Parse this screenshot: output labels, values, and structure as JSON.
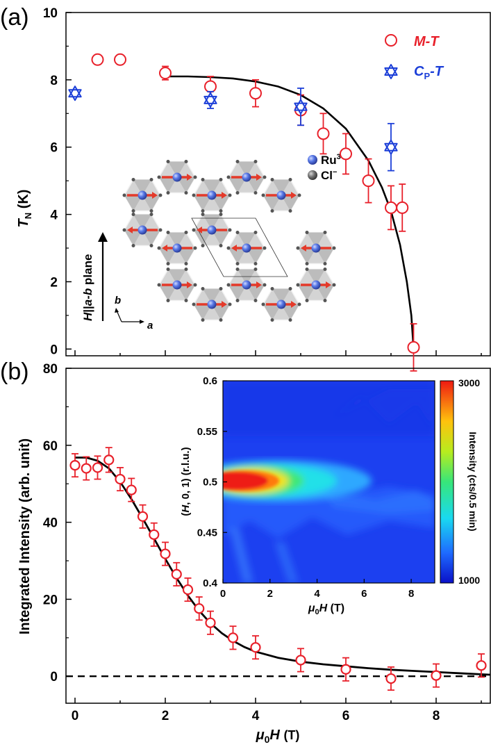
{
  "chart_data": [
    {
      "panel_label": "(a)",
      "type": "scatter",
      "ylabel": "T_N (K)",
      "xlim": [
        -0.2,
        9.2
      ],
      "ylim": [
        -0.2,
        10
      ],
      "yticks": [
        "0",
        "2",
        "4",
        "6",
        "8",
        "10"
      ],
      "grid": false,
      "legend_position": "top-right",
      "series": [
        {
          "name": "M-T",
          "color": "#e8202a",
          "marker": "open-circle",
          "x": [
            0.5,
            1.0,
            2.0,
            3.0,
            4.0,
            5.0,
            5.5,
            6.0,
            6.5,
            7.0,
            7.25,
            7.5
          ],
          "y": [
            8.6,
            8.6,
            8.2,
            7.8,
            7.6,
            7.1,
            6.4,
            5.8,
            5.0,
            4.2,
            4.2,
            0.05
          ],
          "err": [
            0,
            0,
            0.2,
            0.3,
            0.4,
            0.45,
            0.6,
            0.6,
            0.65,
            0.65,
            0.7,
            0.7
          ]
        },
        {
          "name": "C_P-T",
          "color": "#1c3fd8",
          "marker": "open-star",
          "x": [
            0.0,
            3.0,
            5.0,
            7.0
          ],
          "y": [
            7.6,
            7.4,
            7.2,
            6.0
          ],
          "err": [
            0,
            0.25,
            0.55,
            0.7
          ]
        },
        {
          "name": "fit",
          "color": "#000000",
          "marker": "line",
          "x": [
            2.0,
            2.5,
            3.0,
            3.5,
            4.0,
            4.5,
            5.0,
            5.5,
            6.0,
            6.5,
            6.8,
            7.0,
            7.2,
            7.35,
            7.45,
            7.5
          ],
          "y": [
            8.1,
            8.1,
            8.08,
            8.04,
            7.95,
            7.8,
            7.55,
            7.15,
            6.55,
            5.6,
            4.8,
            4.1,
            3.1,
            2.0,
            1.0,
            0.0
          ]
        }
      ],
      "legend": {
        "mt_label_left": "M",
        "mt_label_right": "T",
        "cp_label_left": "C",
        "cp_label_sub": "P",
        "cp_label_right": "T"
      },
      "inset": {
        "ru_label": "Ru",
        "ru_sup": "3+",
        "cl_label": "Cl",
        "cl_sup": "−",
        "field_label_left": "H",
        "field_label_italic": "a-b",
        "field_label_right": " plane",
        "axis_b": "b",
        "axis_a": "a"
      }
    },
    {
      "panel_label": "(b)",
      "type": "scatter",
      "xlabel_mu": "μ",
      "xlabel_sub": "0",
      "xlabel_h": "H",
      "xlabel_unit": "(T)",
      "ylabel": "Integrated Intensity (arb. unit)",
      "xlim": [
        -0.2,
        9.2
      ],
      "ylim": [
        -7,
        80
      ],
      "xticks": [
        "0",
        "2",
        "4",
        "6",
        "8"
      ],
      "yticks": [
        "0",
        "20",
        "40",
        "60",
        "80"
      ],
      "grid": false,
      "series": [
        {
          "name": "data",
          "color": "#e8202a",
          "marker": "open-circle",
          "x": [
            0.0,
            0.25,
            0.5,
            0.75,
            1.0,
            1.25,
            1.5,
            1.75,
            2.0,
            2.25,
            2.5,
            2.75,
            3.0,
            3.5,
            4.0,
            5.0,
            6.0,
            7.0,
            8.0,
            9.0
          ],
          "y": [
            54.8,
            54.0,
            54.2,
            56.2,
            51.2,
            48.4,
            41.5,
            36.8,
            31.8,
            26.5,
            22.5,
            17.6,
            13.9,
            10.0,
            7.5,
            4.2,
            1.8,
            -0.6,
            0.2,
            2.8
          ],
          "err": [
            3.0,
            3.0,
            3.0,
            3.2,
            3.0,
            3.0,
            3.0,
            3.0,
            3.0,
            3.0,
            3.0,
            3.0,
            3.0,
            3.0,
            3.0,
            3.0,
            3.0,
            3.0,
            3.0,
            3.0
          ]
        },
        {
          "name": "fit",
          "color": "#000000",
          "marker": "line",
          "x": [
            0.0,
            0.25,
            0.5,
            0.75,
            1.0,
            1.25,
            1.5,
            1.75,
            2.0,
            2.25,
            2.5,
            2.75,
            3.0,
            3.25,
            3.5,
            3.75,
            4.0,
            4.5,
            5.0,
            5.5,
            6.0,
            6.5,
            7.0,
            7.5,
            8.0,
            8.5,
            9.0,
            9.2
          ],
          "y": [
            56.8,
            56.8,
            56.0,
            54.0,
            50.5,
            46.0,
            41.0,
            35.8,
            30.5,
            25.5,
            21.0,
            17.0,
            13.8,
            11.2,
            9.2,
            7.6,
            6.4,
            4.8,
            3.8,
            3.1,
            2.6,
            2.1,
            1.7,
            1.4,
            1.1,
            0.8,
            0.5,
            0.4
          ]
        },
        {
          "name": "zero",
          "color": "#000000",
          "marker": "dashed-line",
          "x": [
            -0.2,
            9.2
          ],
          "y": [
            0,
            0
          ]
        }
      ],
      "inset": {
        "type": "heatmap",
        "xlim": [
          0,
          9
        ],
        "ylim": [
          0.4,
          0.6
        ],
        "xticks": [
          "0",
          "2",
          "4",
          "6",
          "8"
        ],
        "yticks": [
          "0.4",
          "0.45",
          "0.5",
          "0.55",
          "0.6"
        ],
        "xlabel_mu": "μ",
        "xlabel_sub": "0",
        "xlabel_h": "H",
        "xlabel_unit": " (T)",
        "ylabel_left": "(",
        "ylabel_h": "H",
        "ylabel_right": ", 0, 1) (r.l.u.)",
        "colorbar_label": "Intensity (cts/0.5 min)",
        "colorbar_min": "1000",
        "colorbar_max": "3000",
        "peak_y": 0.495,
        "peak_extent_x": 2.5
      }
    }
  ]
}
